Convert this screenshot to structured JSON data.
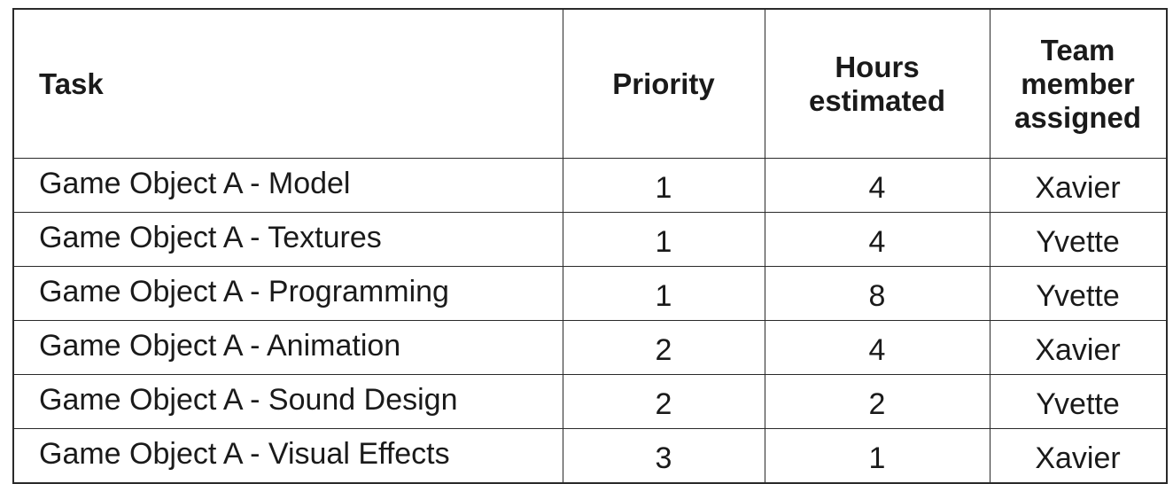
{
  "table": {
    "headers": {
      "task": "Task",
      "priority": "Priority",
      "hours": "Hours estimated",
      "member": "Team member assigned"
    },
    "rows": [
      {
        "task": "Game Object A - Model",
        "priority": "1",
        "hours": "4",
        "member": "Xavier"
      },
      {
        "task": "Game Object A - Textures",
        "priority": "1",
        "hours": "4",
        "member": "Yvette"
      },
      {
        "task": "Game Object A - Programming",
        "priority": "1",
        "hours": "8",
        "member": "Yvette"
      },
      {
        "task": "Game Object A - Animation",
        "priority": "2",
        "hours": "4",
        "member": "Xavier"
      },
      {
        "task": "Game Object A - Sound Design",
        "priority": "2",
        "hours": "2",
        "member": "Yvette"
      },
      {
        "task": "Game Object A - Visual Effects",
        "priority": "3",
        "hours": "1",
        "member": "Xavier"
      }
    ]
  }
}
